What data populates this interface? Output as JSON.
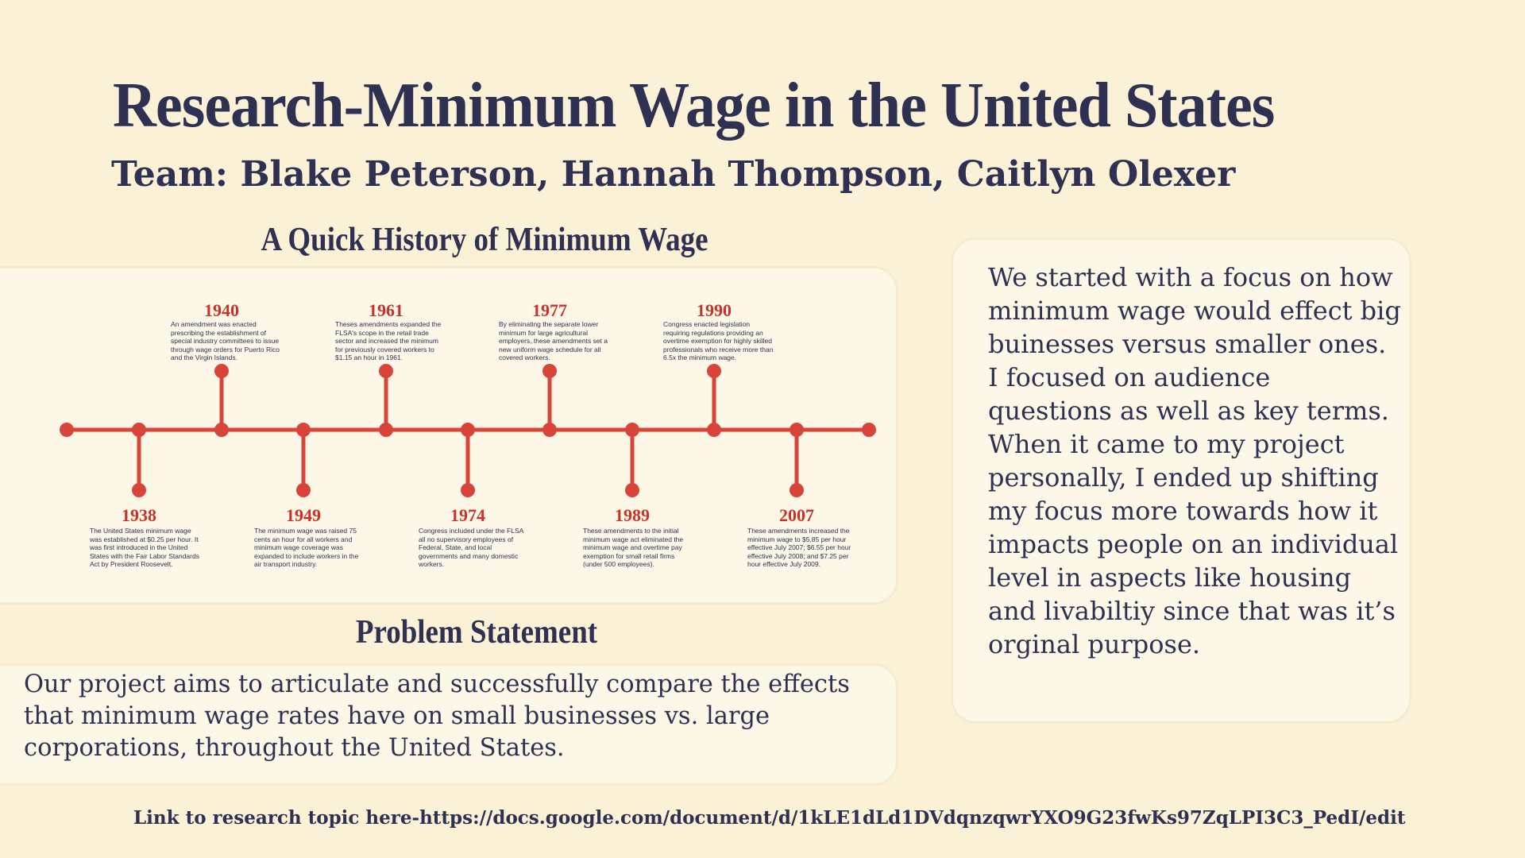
{
  "title": "Research-Minimum Wage in the United States",
  "team": "Team: Blake Peterson, Hannah Thompson, Caitlyn Olexer",
  "history": {
    "heading": "A Quick History of Minimum Wage",
    "events": [
      {
        "year": "1938",
        "text": "The United States minimum wage was established at $0.25 per hour. It was first introduced in the United States with the Fair Labor Standards Act by President Roosevelt."
      },
      {
        "year": "1940",
        "text": "An amendment was enacted prescribing the establishment of special industry committees to issue through wage orders for Puerto Rico and the Virgin Islands."
      },
      {
        "year": "1949",
        "text": "The minimum wage was raised 75 cents an hour for all workers and minimum wage coverage was expanded to include workers in the air transport industry."
      },
      {
        "year": "1961",
        "text": "Theses amendments expanded the FLSA's scope in the retail trade sector and increased the minimum for previously covered workers to $1.15 an hour in 1961."
      },
      {
        "year": "1974",
        "text": "Congress included under the FLSA all no supervisory employees of Federal, State, and local governments and many domestic workers."
      },
      {
        "year": "1977",
        "text": "By eliminating the separate lower minimum for large agricultural employers, these amendments set a new uniform wage schedule for all covered workers."
      },
      {
        "year": "1989",
        "text": "These amendments to the initial minimum wage act eliminated the minimum wage and overtime pay exemption for small retail firms (under 500 employees)."
      },
      {
        "year": "1990",
        "text": "Congress enacted legislation requiring regulations providing an overtime exemption for highly skilled professionals who receive more than 6.5x the minimum wage."
      },
      {
        "year": "2007",
        "text": "These amendments increased the minimum wage to $5.85 per hour effective July 2007; $6.55 per hour effective July 2008; and $7.25 per hour effective July 2009."
      }
    ]
  },
  "problem": {
    "heading": "Problem Statement",
    "text": "Our project aims to articulate and successfully compare the effects that minimum wage rates have on small businesses vs. large corporations, throughout the United States."
  },
  "focus_text": "We started with a focus on how minimum wage would effect big buinesses versus smaller ones. I focused on audience questions as well as key terms. When it came to my project personally, I ended up shifting my focus more towards how it impacts people on an individual level in aspects like housing and livabiltiy since that was it’s orginal purpose.",
  "link_text": "Link to research topic here-https://docs.google.com/document/d/1kLE1dLd1DVdqnzqwrYXO9G23fwKs97ZqLPI3C3_PedI/edit",
  "colors": {
    "accent": "#d9443a",
    "text": "#2e3151",
    "background": "#faf1d7",
    "panel": "#fcf7e6"
  }
}
